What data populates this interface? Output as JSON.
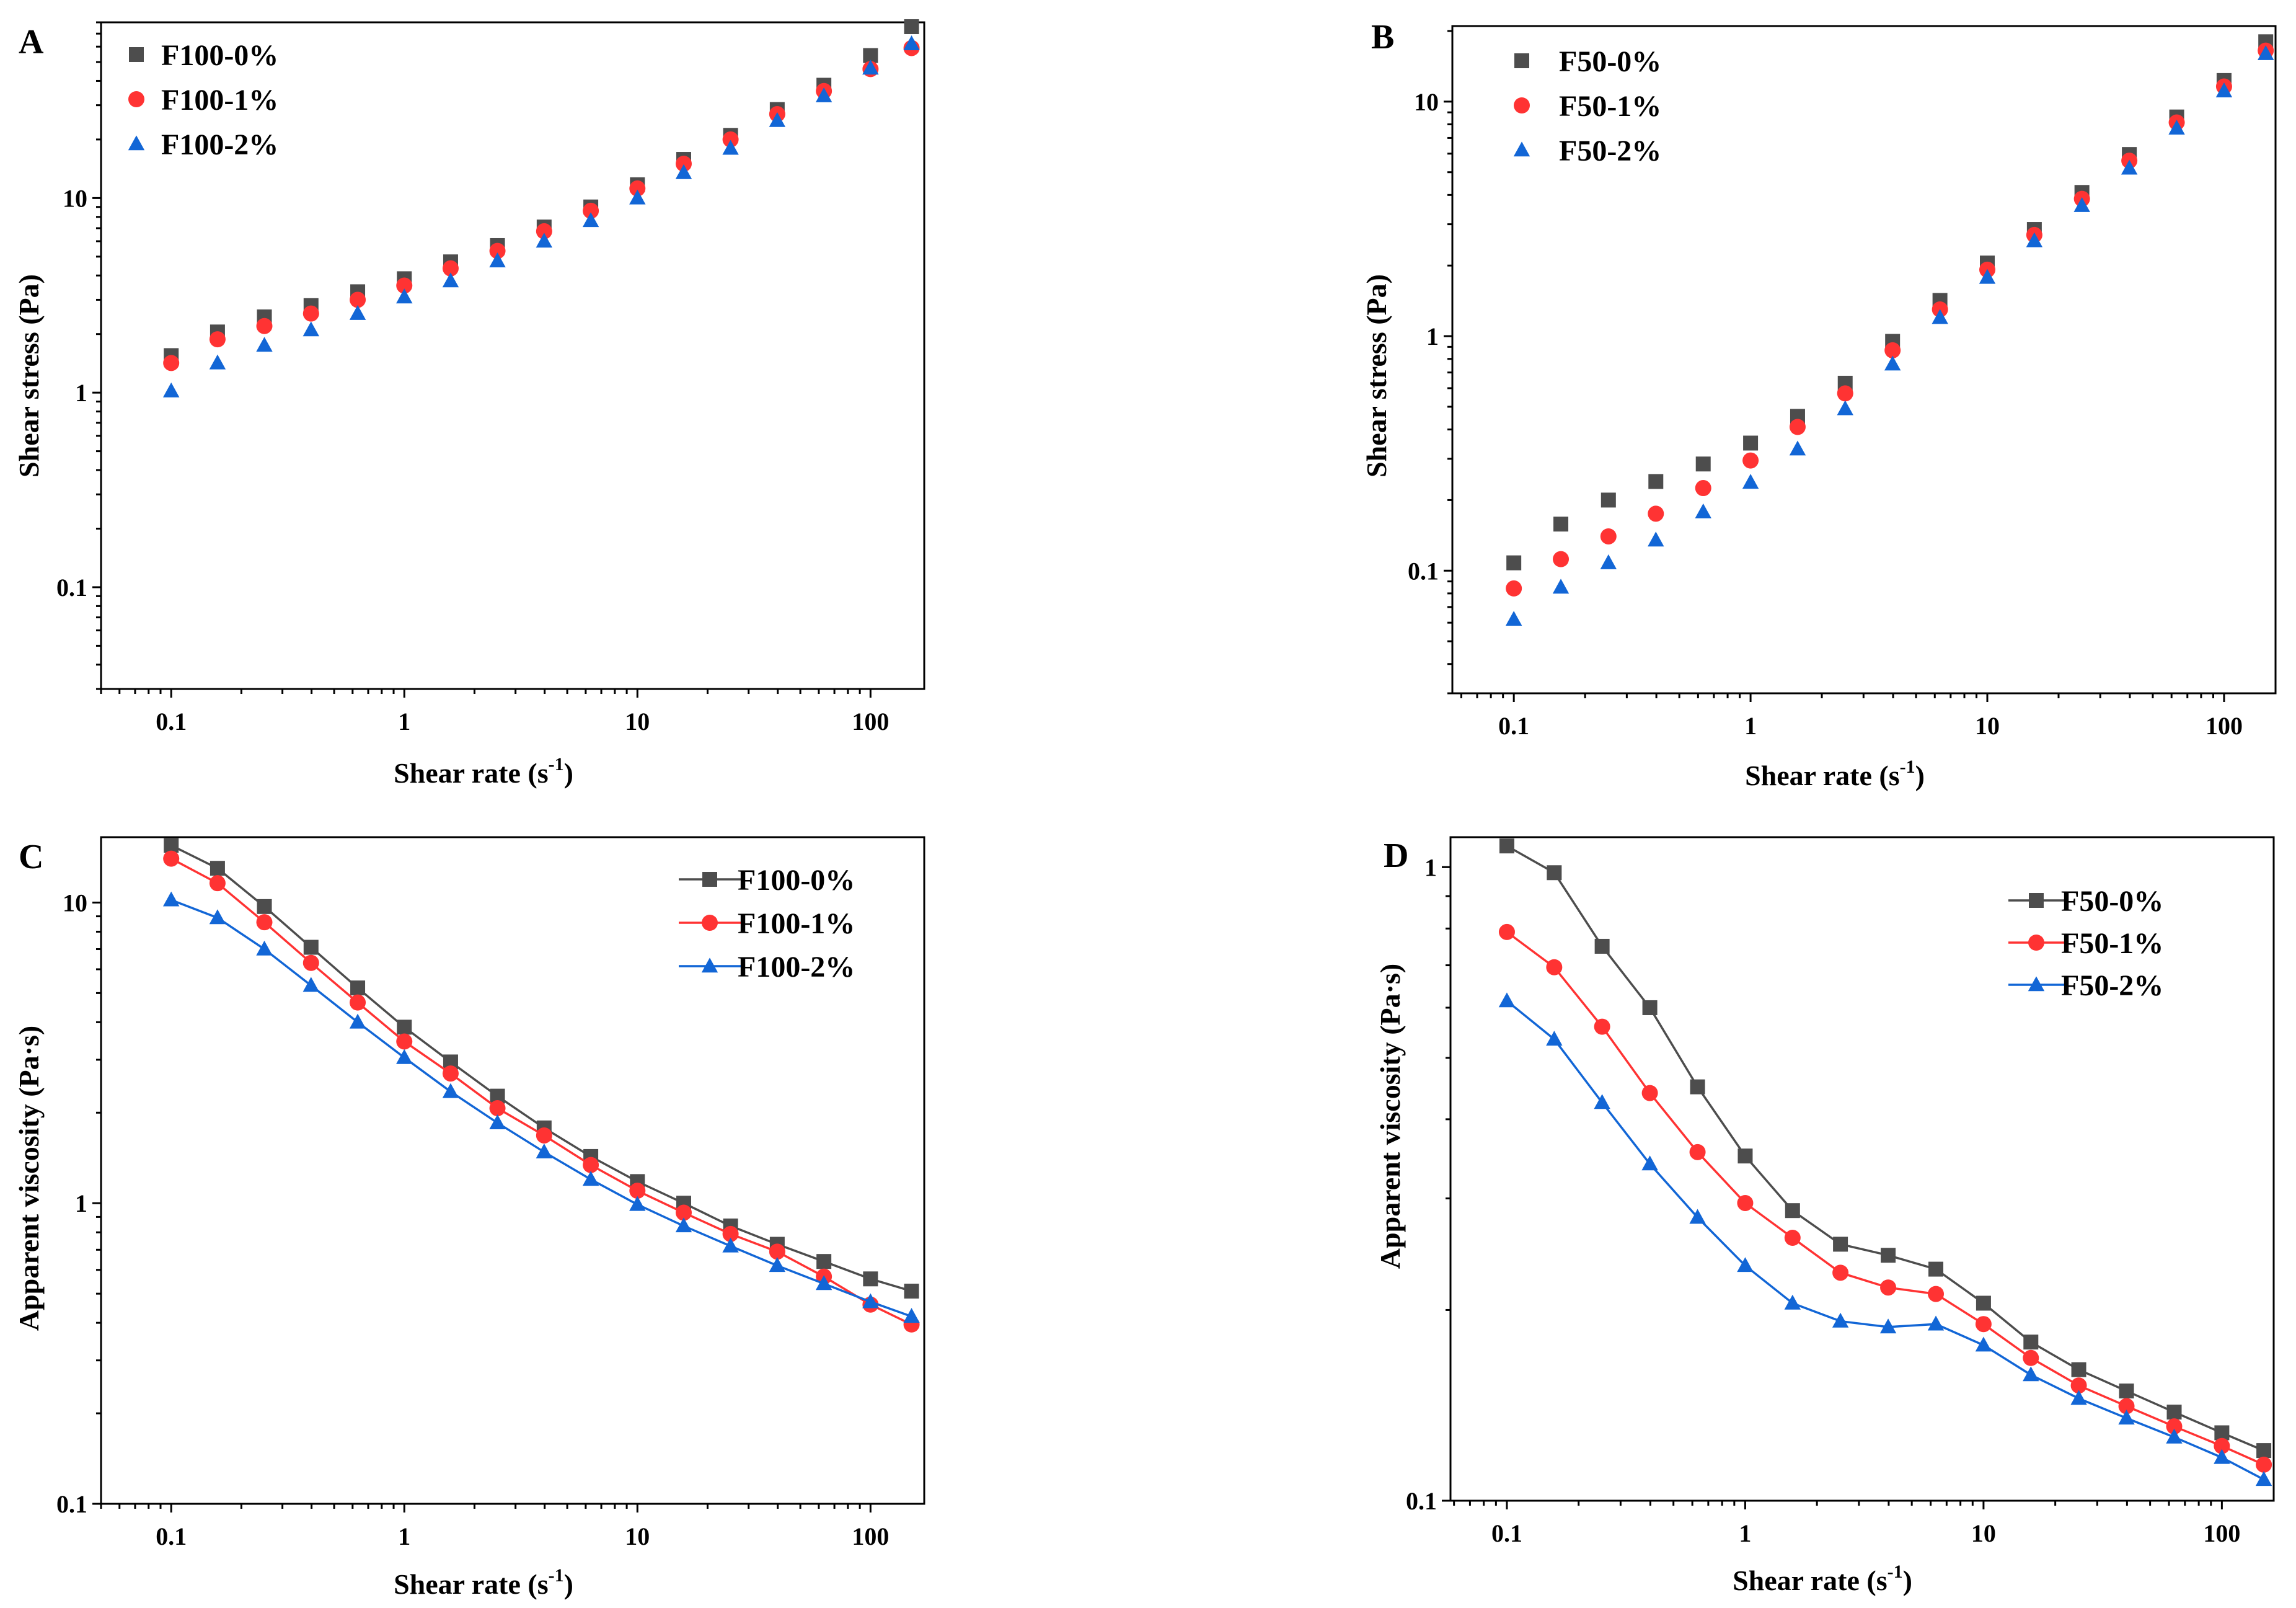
{
  "chart_data": [
    {
      "panel": "A",
      "type": "scatter",
      "xscale": "log",
      "yscale": "log",
      "xlim": [
        0.05,
        170
      ],
      "ylim": [
        0.03,
        80
      ],
      "xticks": [
        "0.1",
        "1",
        "10",
        "100"
      ],
      "yticks": [
        "0.1",
        "1",
        "10"
      ],
      "xlabel": "Shear rate (s",
      "xlabel_sup": "-1",
      "xlabel_end": ")",
      "ylabel": "Shear stress (Pa)",
      "legend_position": "top-left",
      "x": [
        0.1,
        0.158,
        0.251,
        0.398,
        0.631,
        1,
        1.58,
        2.51,
        3.98,
        6.31,
        10,
        15.8,
        25.1,
        39.8,
        63.1,
        100,
        150
      ],
      "series": [
        {
          "name": "F100-0%",
          "marker": "square",
          "color": "#4d4d4d",
          "values": [
            1.55,
            2.05,
            2.45,
            2.8,
            3.3,
            3.85,
            4.7,
            5.7,
            7.1,
            9.0,
            11.7,
            15.8,
            21.0,
            28.5,
            38.0,
            54.0,
            76.0
          ]
        },
        {
          "name": "F100-1%",
          "marker": "circle",
          "color": "#ff3333",
          "values": [
            1.42,
            1.88,
            2.2,
            2.55,
            3.0,
            3.55,
            4.35,
            5.35,
            6.75,
            8.6,
            11.2,
            15.0,
            20.0,
            27.0,
            35.5,
            46.0,
            59.0
          ]
        },
        {
          "name": "F100-2%",
          "marker": "triangle",
          "color": "#1266d6",
          "values": [
            1.02,
            1.42,
            1.75,
            2.1,
            2.55,
            3.1,
            3.75,
            4.75,
            6.0,
            7.65,
            10.0,
            13.5,
            18.0,
            25.0,
            33.5,
            46.5,
            62.0
          ]
        }
      ]
    },
    {
      "panel": "B",
      "type": "scatter",
      "xscale": "log",
      "yscale": "log",
      "xlim": [
        0.055,
        165
      ],
      "ylim": [
        0.03,
        21
      ],
      "xticks": [
        "0.1",
        "1",
        "10",
        "100"
      ],
      "yticks": [
        "0.1",
        "1",
        "10"
      ],
      "xlabel": "Shear rate (s",
      "xlabel_sup": "-1",
      "xlabel_end": ")",
      "ylabel": "Shear stress (Pa)",
      "legend_position": "top-left",
      "x": [
        0.1,
        0.158,
        0.251,
        0.398,
        0.631,
        1,
        1.58,
        2.51,
        3.98,
        6.31,
        10,
        15.8,
        25.1,
        39.8,
        63.1,
        100,
        150
      ],
      "series": [
        {
          "name": "F50-0%",
          "marker": "square",
          "color": "#4d4d4d",
          "values": [
            0.108,
            0.158,
            0.2,
            0.24,
            0.285,
            0.35,
            0.455,
            0.63,
            0.95,
            1.42,
            2.05,
            2.85,
            4.1,
            5.95,
            8.6,
            12.3,
            18.0
          ]
        },
        {
          "name": "F50-1%",
          "marker": "circle",
          "color": "#ff3333",
          "values": [
            0.084,
            0.112,
            0.14,
            0.175,
            0.225,
            0.295,
            0.41,
            0.57,
            0.87,
            1.3,
            1.92,
            2.7,
            3.85,
            5.6,
            8.15,
            11.6,
            16.5
          ]
        },
        {
          "name": "F50-2%",
          "marker": "triangle",
          "color": "#1266d6",
          "values": [
            0.062,
            0.085,
            0.108,
            0.135,
            0.178,
            0.238,
            0.33,
            0.49,
            0.76,
            1.2,
            1.78,
            2.55,
            3.6,
            5.2,
            7.7,
            11.1,
            16.0
          ]
        }
      ]
    },
    {
      "panel": "C",
      "type": "line",
      "xscale": "log",
      "yscale": "log",
      "xlim": [
        0.05,
        170
      ],
      "ylim": [
        0.1,
        16.5
      ],
      "xticks": [
        "0.1",
        "1",
        "10",
        "100"
      ],
      "yticks": [
        "0.1",
        "1",
        "10"
      ],
      "xlabel": "Shear rate (s",
      "xlabel_sup": "-1",
      "xlabel_end": ")",
      "ylabel": "Apparent viscosity (Pa·s)",
      "legend_position": "top-right",
      "x": [
        0.1,
        0.158,
        0.251,
        0.398,
        0.631,
        1,
        1.58,
        2.51,
        3.98,
        6.31,
        10,
        15.8,
        25.1,
        39.8,
        63.1,
        100,
        150
      ],
      "series": [
        {
          "name": "F100-0%",
          "marker": "square",
          "color": "#4d4d4d",
          "values": [
            15.5,
            13.0,
            9.7,
            7.1,
            5.2,
            3.85,
            2.95,
            2.27,
            1.78,
            1.43,
            1.18,
            1.0,
            0.84,
            0.73,
            0.64,
            0.56,
            0.51
          ]
        },
        {
          "name": "F100-1%",
          "marker": "circle",
          "color": "#ff3333",
          "values": [
            14.0,
            11.6,
            8.6,
            6.3,
            4.65,
            3.45,
            2.7,
            2.07,
            1.68,
            1.34,
            1.1,
            0.93,
            0.79,
            0.69,
            0.57,
            0.46,
            0.395
          ]
        },
        {
          "name": "F100-2%",
          "marker": "triangle",
          "color": "#1266d6",
          "values": [
            10.2,
            8.9,
            7.0,
            5.3,
            4.0,
            3.05,
            2.35,
            1.85,
            1.48,
            1.2,
            0.99,
            0.84,
            0.72,
            0.62,
            0.54,
            0.47,
            0.42
          ]
        }
      ]
    },
    {
      "panel": "D",
      "type": "line",
      "xscale": "log",
      "yscale": "log",
      "xlim": [
        0.058,
        165
      ],
      "ylim": [
        0.1,
        1.115
      ],
      "xticks": [
        "0.1",
        "1",
        "10",
        "100"
      ],
      "yticks": [
        "0.1",
        "1"
      ],
      "xlabel": "Shear rate (s",
      "xlabel_sup": "-1",
      "xlabel_end": ")",
      "ylabel": "Apparent viscosity (Pa·s)",
      "legend_position": "top-right",
      "x": [
        0.1,
        0.158,
        0.251,
        0.398,
        0.631,
        1,
        1.58,
        2.51,
        3.98,
        6.31,
        10,
        15.8,
        25.1,
        39.8,
        63.1,
        100,
        150
      ],
      "series": [
        {
          "name": "F50-0%",
          "marker": "square",
          "color": "#4d4d4d",
          "values": [
            1.08,
            0.98,
            0.75,
            0.6,
            0.45,
            0.35,
            0.287,
            0.254,
            0.244,
            0.232,
            0.205,
            0.178,
            0.161,
            0.149,
            0.138,
            0.128,
            0.12
          ]
        },
        {
          "name": "F50-1%",
          "marker": "circle",
          "color": "#ff3333",
          "values": [
            0.79,
            0.695,
            0.56,
            0.44,
            0.355,
            0.295,
            0.26,
            0.229,
            0.217,
            0.212,
            0.19,
            0.168,
            0.152,
            0.141,
            0.131,
            0.122,
            0.114
          ]
        },
        {
          "name": "F50-2%",
          "marker": "triangle",
          "color": "#1266d6",
          "values": [
            0.615,
            0.535,
            0.425,
            0.34,
            0.28,
            0.235,
            0.205,
            0.192,
            0.188,
            0.19,
            0.176,
            0.158,
            0.145,
            0.135,
            0.126,
            0.117,
            0.108
          ]
        }
      ]
    }
  ]
}
